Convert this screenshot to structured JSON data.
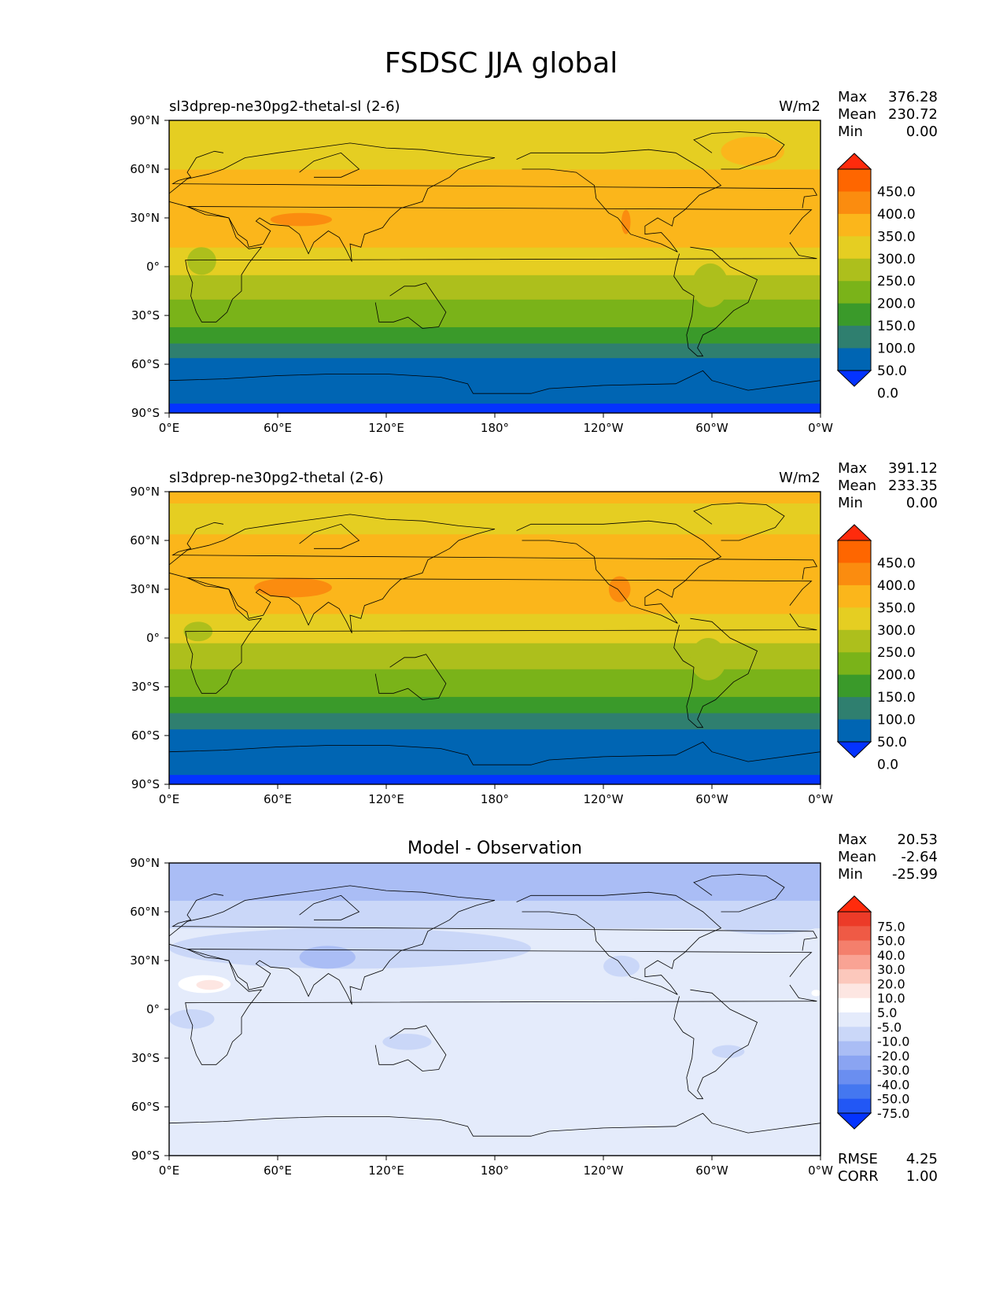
{
  "title": "FSDSC JJA global",
  "lon_ticks": [
    "0°E",
    "60°E",
    "120°E",
    "180°",
    "120°W",
    "60°W",
    "0°W"
  ],
  "lat_ticks": [
    "90°N",
    "60°N",
    "30°N",
    "0°",
    "30°S",
    "60°S",
    "90°S"
  ],
  "panels": [
    {
      "title_left": "sl3dprep-ne30pg2-thetal-sl (2-6)",
      "title_center": "",
      "units": "W/m2",
      "stats": {
        "labels": [
          "Max",
          "Mean",
          "Min"
        ],
        "values": [
          "376.28",
          "230.72",
          "0.00"
        ]
      },
      "colorbar_labels": [
        "450.0",
        "400.0",
        "350.0",
        "300.0",
        "250.0",
        "200.0",
        "150.0",
        "100.0",
        "50.0",
        "0.0"
      ]
    },
    {
      "title_left": "sl3dprep-ne30pg2-thetal (2-6)",
      "title_center": "",
      "units": "W/m2",
      "stats": {
        "labels": [
          "Max",
          "Mean",
          "Min"
        ],
        "values": [
          "391.12",
          "233.35",
          "0.00"
        ]
      },
      "colorbar_labels": [
        "450.0",
        "400.0",
        "350.0",
        "300.0",
        "250.0",
        "200.0",
        "150.0",
        "100.0",
        "50.0",
        "0.0"
      ]
    },
    {
      "title_left": "",
      "title_center": "Model - Observation",
      "units": "",
      "stats": {
        "labels": [
          "Max",
          "Mean",
          "Min"
        ],
        "values": [
          "20.53",
          "-2.64",
          "-25.99"
        ]
      },
      "colorbar_labels": [
        "75.0",
        "50.0",
        "40.0",
        "30.0",
        "20.0",
        "10.0",
        "5.0",
        "-5.0",
        "-10.0",
        "-20.0",
        "-30.0",
        "-40.0",
        "-50.0",
        "-75.0"
      ],
      "metrics": {
        "labels": [
          "RMSE",
          "CORR"
        ],
        "values": [
          "4.25",
          "1.00"
        ]
      }
    }
  ],
  "colors": {
    "field": [
      "#0433ff",
      "#0065b3",
      "#2f7f6f",
      "#3a9a2a",
      "#7ab319",
      "#adbf1c",
      "#e5ce22",
      "#fbb61b",
      "#fb8c0f",
      "#fe6600",
      "#ff2b0c"
    ],
    "diff": [
      "#0433ff",
      "#2257f5",
      "#4477f0",
      "#6a8ef0",
      "#8aa4f2",
      "#aabdf5",
      "#cad7f8",
      "#e4ebfb",
      "#ffffff",
      "#fde6e2",
      "#fcc8bc",
      "#f9a394",
      "#f47f6c",
      "#ef5a45",
      "#ec3b28",
      "#ff2b0c"
    ]
  },
  "chart_data": [
    {
      "type": "heatmap",
      "map": "global equirectangular, centered on 180°",
      "title": "sl3dprep-ne30pg2-thetal-sl (2-6)",
      "units": "W/m2",
      "xlim": [
        0,
        360
      ],
      "ylim": [
        -90,
        90
      ],
      "x_ticks": [
        0,
        60,
        120,
        180,
        240,
        300,
        360
      ],
      "y_ticks": [
        90,
        60,
        30,
        0,
        -30,
        -60,
        -90
      ],
      "levels": [
        0,
        50,
        100,
        150,
        200,
        250,
        300,
        350,
        400,
        450
      ],
      "zonal_bands": [
        {
          "lat": [
            -90,
            -84
          ],
          "value": -25
        },
        {
          "lat": [
            -84,
            -56
          ],
          "value": 25
        },
        {
          "lat": [
            -56,
            -47
          ],
          "value": 75
        },
        {
          "lat": [
            -47,
            -37
          ],
          "value": 125
        },
        {
          "lat": [
            -37,
            -20
          ],
          "value": 175
        },
        {
          "lat": [
            -20,
            -5
          ],
          "value": 225
        },
        {
          "lat": [
            -5,
            12
          ],
          "value": 275
        },
        {
          "lat": [
            12,
            60
          ],
          "value": 325
        },
        {
          "lat": [
            60,
            90
          ],
          "value": 275
        }
      ],
      "regions": [
        {
          "lon": [
            40,
            123
          ],
          "lat": [
            20,
            37
          ],
          "value": 325
        },
        {
          "lon": [
            56,
            90
          ],
          "lat": [
            25,
            33
          ],
          "value": 375
        },
        {
          "lon": [
            250,
            255
          ],
          "lat": [
            20,
            35
          ],
          "value": 375
        },
        {
          "lon": [
            289,
            309
          ],
          "lat": [
            -25,
            2
          ],
          "value": 225
        },
        {
          "lon": [
            10,
            26
          ],
          "lat": [
            -5,
            12
          ],
          "value": 225
        },
        {
          "lon": [
            305,
            340
          ],
          "lat": [
            62,
            80
          ],
          "value": 325
        }
      ],
      "stats": {
        "max": 376.28,
        "mean": 230.72,
        "min": 0.0
      }
    },
    {
      "type": "heatmap",
      "map": "global equirectangular, centered on 180°",
      "title": "sl3dprep-ne30pg2-thetal (2-6)",
      "units": "W/m2",
      "xlim": [
        0,
        360
      ],
      "ylim": [
        -90,
        90
      ],
      "x_ticks": [
        0,
        60,
        120,
        180,
        240,
        300,
        360
      ],
      "y_ticks": [
        90,
        60,
        30,
        0,
        -30,
        -60,
        -90
      ],
      "levels": [
        0,
        50,
        100,
        150,
        200,
        250,
        300,
        350,
        400,
        450
      ],
      "zonal_bands": [
        {
          "lat": [
            -90,
            -84
          ],
          "value": -25
        },
        {
          "lat": [
            -84,
            -56
          ],
          "value": 25
        },
        {
          "lat": [
            -56,
            -46
          ],
          "value": 75
        },
        {
          "lat": [
            -46,
            -36
          ],
          "value": 125
        },
        {
          "lat": [
            -36,
            -19
          ],
          "value": 175
        },
        {
          "lat": [
            -19,
            -3
          ],
          "value": 225
        },
        {
          "lat": [
            -3,
            15
          ],
          "value": 275
        },
        {
          "lat": [
            15,
            64
          ],
          "value": 325
        },
        {
          "lat": [
            64,
            83
          ],
          "value": 275
        },
        {
          "lat": [
            83,
            90
          ],
          "value": 325
        }
      ],
      "regions": [
        {
          "lon": [
            47,
            90
          ],
          "lat": [
            25,
            37
          ],
          "value": 375
        },
        {
          "lon": [
            243,
            255
          ],
          "lat": [
            22,
            38
          ],
          "value": 375
        },
        {
          "lon": [
            288,
            308
          ],
          "lat": [
            -26,
            0
          ],
          "value": 225
        },
        {
          "lon": [
            8,
            24
          ],
          "lat": [
            -2,
            10
          ],
          "value": 225
        }
      ],
      "stats": {
        "max": 391.12,
        "mean": 233.35,
        "min": 0.0
      }
    },
    {
      "type": "heatmap",
      "map": "global equirectangular, centered on 180°",
      "title": "Model - Observation",
      "xlim": [
        0,
        360
      ],
      "ylim": [
        -90,
        90
      ],
      "x_ticks": [
        0,
        60,
        120,
        180,
        240,
        300,
        360
      ],
      "y_ticks": [
        90,
        60,
        30,
        0,
        -30,
        -60,
        -90
      ],
      "levels": [
        -75,
        -50,
        -40,
        -30,
        -20,
        -10,
        -5,
        5,
        10,
        20,
        30,
        40,
        50,
        75
      ],
      "zonal_bands": [
        {
          "lat": [
            -90,
            50
          ],
          "value": 0
        },
        {
          "lat": [
            50,
            67
          ],
          "value": -7
        },
        {
          "lat": [
            67,
            90
          ],
          "value": -12
        }
      ],
      "regions": [
        {
          "lon": [
            0,
            200
          ],
          "lat": [
            25,
            50
          ],
          "value": -7
        },
        {
          "lon": [
            72,
            103
          ],
          "lat": [
            25,
            39
          ],
          "value": -15
        },
        {
          "lon": [
            5,
            34
          ],
          "lat": [
            10,
            21
          ],
          "value": 8
        },
        {
          "lon": [
            15,
            30
          ],
          "lat": [
            12,
            18
          ],
          "value": 15
        },
        {
          "lon": [
            355,
            360
          ],
          "lat": [
            8,
            12
          ],
          "value": 8
        },
        {
          "lon": [
            0,
            25
          ],
          "lat": [
            -12,
            0
          ],
          "value": -7
        },
        {
          "lon": [
            118,
            145
          ],
          "lat": [
            -25,
            -15
          ],
          "value": -7
        },
        {
          "lon": [
            300,
            318
          ],
          "lat": [
            -30,
            -22
          ],
          "value": -7
        },
        {
          "lon": [
            240,
            260
          ],
          "lat": [
            20,
            33
          ],
          "value": -7
        },
        {
          "lon": [
            302,
            360
          ],
          "lat": [
            46,
            60
          ],
          "value": -7
        }
      ],
      "stats": {
        "max": 20.53,
        "mean": -2.64,
        "min": -25.99
      },
      "metrics": {
        "rmse": 4.25,
        "corr": 1.0
      }
    }
  ]
}
